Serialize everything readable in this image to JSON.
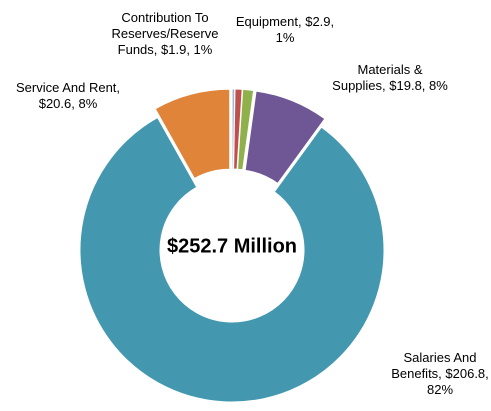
{
  "chart_data": {
    "type": "donut",
    "center_label": "$252.7 Million",
    "values": [
      0.7,
      1.9,
      2.9,
      19.8,
      206.8,
      20.6
    ],
    "value_labels": [
      null,
      "Contribution To Reserves/Reserve Funds, $1.9, 1%",
      "Equipment, $2.9, 1%",
      "Materials & Supplies, $19.8, 8%",
      "Salaries And Benefits, $206.8, 82%",
      "Service And Rent, $20.6, 8%"
    ],
    "colors": [
      "#9fb3d3",
      "#c0504d",
      "#8fb04a",
      "#6f5795",
      "#4398b0",
      "#e0843a"
    ]
  }
}
